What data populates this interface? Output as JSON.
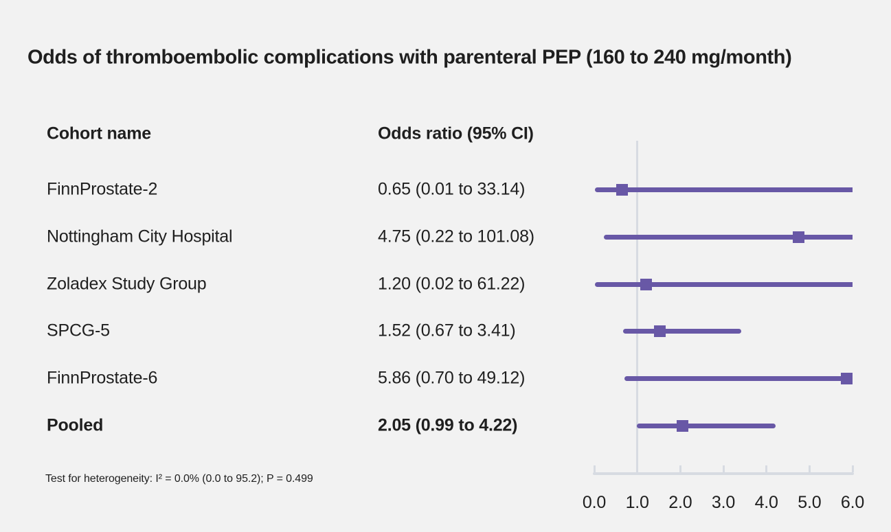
{
  "title": "Odds of thromboembolic complications with parenteral PEP (160 to 240 mg/month)",
  "table": {
    "columns": {
      "cohort": "Cohort name",
      "odds_ratio": "Odds ratio (95% CI)"
    }
  },
  "footnote": "Test for heterogeneity: I² = 0.0% (0.0 to 95.2); P = 0.499",
  "colors": {
    "accent": "#6858a6",
    "axis_gray": "#d7dbe2",
    "text": "#1f1f1f",
    "background": "#f2f2f2"
  },
  "chart_data": {
    "type": "forest",
    "title": "Odds of thromboembolic complications with parenteral PEP (160 to 240 mg/month)",
    "xlabel": "",
    "xlim": [
      0,
      6
    ],
    "reference_line": 1.0,
    "tick_values": [
      0,
      1,
      2,
      3,
      4,
      5,
      6
    ],
    "tick_labels": [
      "0.0",
      "1.0",
      "2.0",
      "3.0",
      "4.0",
      "5.0",
      "6.0"
    ],
    "rows": [
      {
        "cohort": "FinnProstate-2",
        "or": 0.65,
        "ci_low": 0.01,
        "ci_high": 33.14,
        "label": "0.65 (0.01 to 33.14)",
        "bold": false
      },
      {
        "cohort": "Nottingham City Hospital",
        "or": 4.75,
        "ci_low": 0.22,
        "ci_high": 101.08,
        "label": "4.75 (0.22 to 101.08)",
        "bold": false
      },
      {
        "cohort": "Zoladex Study Group",
        "or": 1.2,
        "ci_low": 0.02,
        "ci_high": 61.22,
        "label": "1.20 (0.02 to 61.22)",
        "bold": false
      },
      {
        "cohort": "SPCG-5",
        "or": 1.52,
        "ci_low": 0.67,
        "ci_high": 3.41,
        "label": "1.52 (0.67 to 3.41)",
        "bold": false
      },
      {
        "cohort": "FinnProstate-6",
        "or": 5.86,
        "ci_low": 0.7,
        "ci_high": 49.12,
        "label": "5.86 (0.70 to 49.12)",
        "bold": false
      },
      {
        "cohort": "Pooled",
        "or": 2.05,
        "ci_low": 0.99,
        "ci_high": 4.22,
        "label": "2.05 (0.99 to 4.22)",
        "bold": true
      }
    ]
  }
}
